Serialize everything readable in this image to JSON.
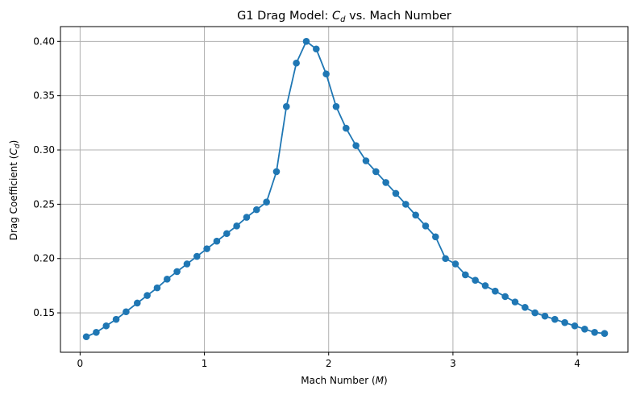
{
  "chart_data": {
    "type": "line",
    "title": "G1 Drag Model: C_d vs. Mach Number",
    "title_parts": {
      "prefix": "G1 Drag Model: ",
      "var": "C",
      "sub": "d",
      "suffix": " vs. Mach Number"
    },
    "xlabel": "Mach Number (M)",
    "xlabel_parts": {
      "prefix": "Mach Number (",
      "var": "M",
      "suffix": ")"
    },
    "ylabel": "Drag Coefficient (C_d)",
    "ylabel_parts": {
      "prefix": "Drag Coefficient (",
      "var": "C",
      "sub": "d",
      "suffix": ")"
    },
    "xlim": [
      -0.158,
      4.408
    ],
    "ylim": [
      0.1137,
      0.4136
    ],
    "xticks": [
      0,
      1,
      2,
      3,
      4
    ],
    "xtick_labels": [
      "0",
      "1",
      "2",
      "3",
      "4"
    ],
    "yticks": [
      0.15,
      0.2,
      0.25,
      0.3,
      0.35,
      0.4
    ],
    "ytick_labels": [
      "0.15",
      "0.20",
      "0.25",
      "0.30",
      "0.35",
      "0.40"
    ],
    "grid": true,
    "markers": true,
    "series": [
      {
        "color": "#1f77b4",
        "x": [
          0.05,
          0.13,
          0.21,
          0.29,
          0.37,
          0.46,
          0.54,
          0.62,
          0.7,
          0.78,
          0.86,
          0.94,
          1.02,
          1.1,
          1.18,
          1.26,
          1.34,
          1.42,
          1.5,
          1.58,
          1.66,
          1.74,
          1.82,
          1.9,
          1.98,
          2.06,
          2.14,
          2.22,
          2.3,
          2.38,
          2.46,
          2.54,
          2.62,
          2.7,
          2.78,
          2.86,
          2.94,
          3.02,
          3.1,
          3.18,
          3.26,
          3.34,
          3.42,
          3.5,
          3.58,
          3.66,
          3.74,
          3.82,
          3.9,
          3.98,
          4.06,
          4.14,
          4.22
        ],
        "y": [
          0.128,
          0.132,
          0.138,
          0.144,
          0.151,
          0.159,
          0.166,
          0.173,
          0.181,
          0.188,
          0.195,
          0.202,
          0.209,
          0.216,
          0.223,
          0.23,
          0.238,
          0.245,
          0.252,
          0.28,
          0.34,
          0.38,
          0.4,
          0.393,
          0.37,
          0.34,
          0.32,
          0.304,
          0.29,
          0.28,
          0.27,
          0.26,
          0.25,
          0.24,
          0.23,
          0.22,
          0.2,
          0.195,
          0.185,
          0.18,
          0.175,
          0.17,
          0.165,
          0.16,
          0.155,
          0.15,
          0.147,
          0.144,
          0.141,
          0.138,
          0.135,
          0.132,
          0.131
        ]
      }
    ]
  }
}
